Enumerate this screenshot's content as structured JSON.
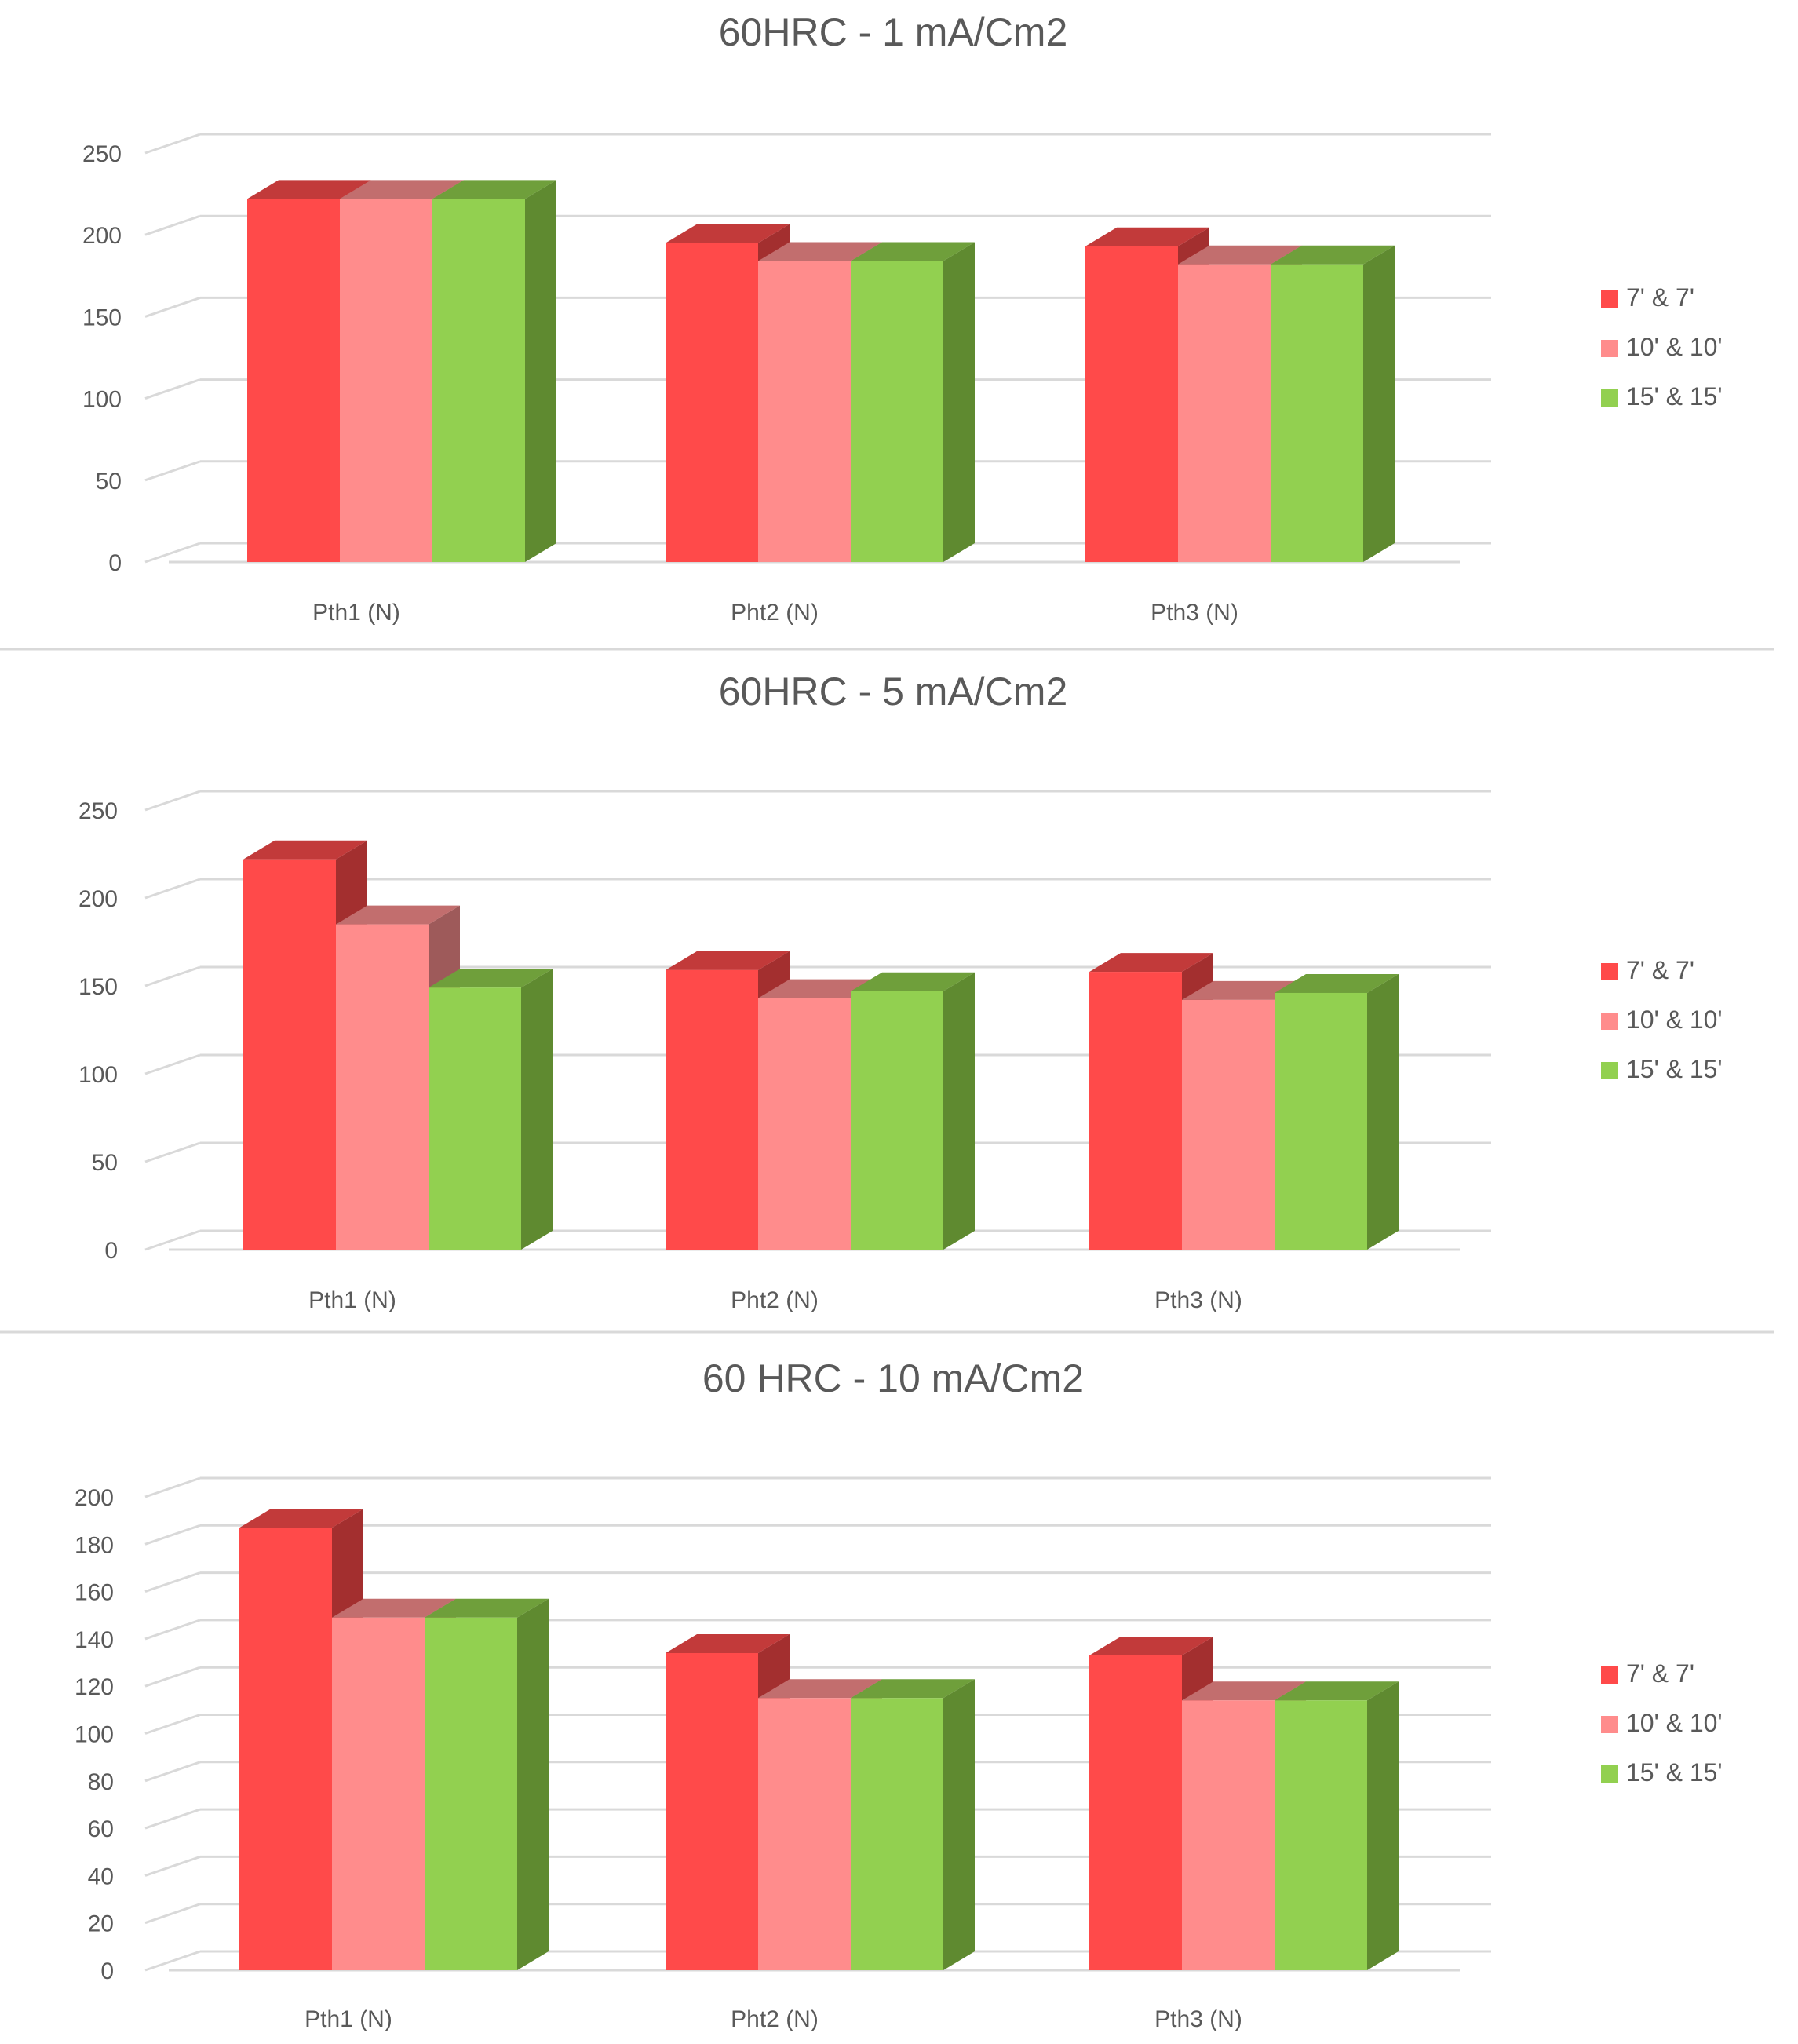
{
  "chart_data": [
    {
      "type": "bar",
      "title": "60HRC - 1 mA/Cm2",
      "categories": [
        "Pth1 (N)",
        "Pht2 (N)",
        "Pth3 (N)"
      ],
      "series": [
        {
          "name": "7' & 7'",
          "values": [
            222,
            195,
            193
          ]
        },
        {
          "name": "10' & 10'",
          "values": [
            222,
            184,
            182
          ]
        },
        {
          "name": "15' & 15'",
          "values": [
            222,
            184,
            182
          ]
        }
      ],
      "yticks": [
        0,
        50,
        100,
        150,
        200,
        250
      ],
      "ylim": [
        0,
        250
      ],
      "legend": "right",
      "xlabel": "",
      "ylabel": ""
    },
    {
      "type": "bar",
      "title": "60HRC - 5 mA/Cm2",
      "categories": [
        "Pth1 (N)",
        "Pht2 (N)",
        "Pth3 (N)"
      ],
      "series": [
        {
          "name": "7' & 7'",
          "values": [
            222,
            159,
            158
          ]
        },
        {
          "name": "10' & 10'",
          "values": [
            185,
            143,
            142
          ]
        },
        {
          "name": "15' & 15'",
          "values": [
            149,
            147,
            146
          ]
        }
      ],
      "yticks": [
        0,
        50,
        100,
        150,
        200,
        250
      ],
      "ylim": [
        0,
        250
      ],
      "legend": "right",
      "xlabel": "",
      "ylabel": ""
    },
    {
      "type": "bar",
      "title": "60 HRC - 10 mA/Cm2",
      "categories": [
        "Pth1 (N)",
        "Pht2 (N)",
        "Pth3 (N)"
      ],
      "series": [
        {
          "name": "7' & 7'",
          "values": [
            187,
            134,
            133
          ]
        },
        {
          "name": "10' & 10'",
          "values": [
            149,
            115,
            114
          ]
        },
        {
          "name": "15' & 15'",
          "values": [
            149,
            115,
            114
          ]
        }
      ],
      "yticks": [
        0,
        20,
        40,
        60,
        80,
        100,
        120,
        140,
        160,
        180,
        200
      ],
      "ylim": [
        0,
        200
      ],
      "legend": "right",
      "xlabel": "",
      "ylabel": ""
    }
  ],
  "colors": {
    "series_front": [
      "#ff4a4a",
      "#ff8c8c",
      "#92d050"
    ],
    "series_top": [
      "#c23a3a",
      "#c26e6e",
      "#6f9f3b"
    ],
    "series_side": [
      "#a32f2f",
      "#9e5a5a",
      "#5f8a30"
    ],
    "grid": "#d9d9d9",
    "axis_text": "#595959"
  }
}
